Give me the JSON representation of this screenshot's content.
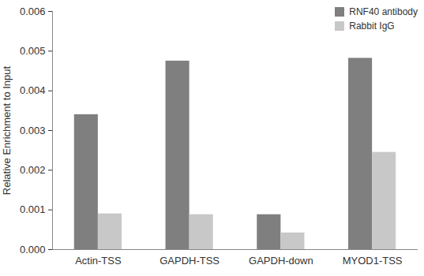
{
  "chart_data": {
    "type": "bar",
    "categories": [
      "Actin-TSS",
      "GAPDH-TSS",
      "GAPDH-down",
      "MYOD1-TSS"
    ],
    "series": [
      {
        "name": "RNF40 antibody",
        "color": "#7f7f7f",
        "values": [
          0.0034,
          0.00475,
          0.00088,
          0.00482
        ]
      },
      {
        "name": "Rabbit IgG",
        "color": "#c8c8c8",
        "values": [
          0.0009,
          0.00088,
          0.00042,
          0.00245
        ]
      }
    ],
    "y_label": "Relative Enrichment to Input",
    "ylim": [
      0,
      0.006
    ],
    "yticks": [
      {
        "value": 0,
        "label": "0.000"
      },
      {
        "value": 0.001,
        "label": "0.001"
      },
      {
        "value": 0.002,
        "label": "0.002"
      },
      {
        "value": 0.003,
        "label": "0.003"
      },
      {
        "value": 0.004,
        "label": "0.004"
      },
      {
        "value": 0.005,
        "label": "0.005"
      },
      {
        "value": 0.006,
        "label": "0.006"
      }
    ],
    "grid": false,
    "legend": "top-right"
  }
}
